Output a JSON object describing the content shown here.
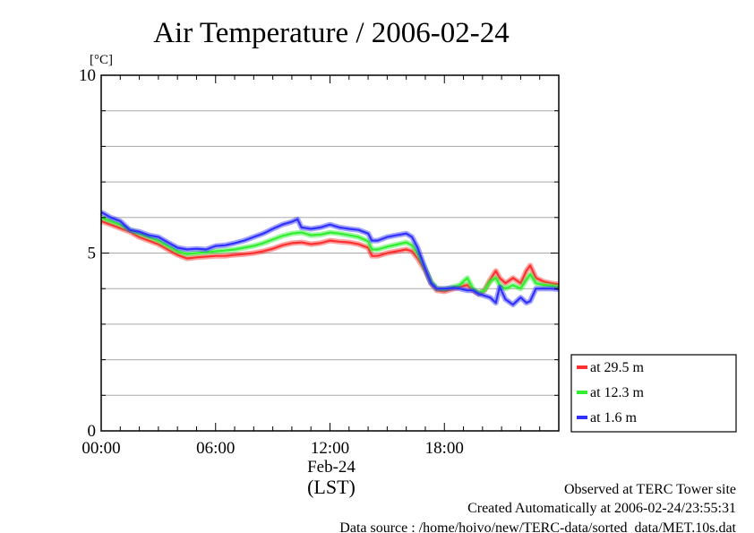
{
  "chart_data": {
    "type": "line",
    "title": "Air Temperature / 2006-02-24",
    "ylabel": "[°C]",
    "ylim": [
      0,
      10
    ],
    "yticks": [
      "0",
      "5",
      "10"
    ],
    "xlim": [
      0,
      24
    ],
    "xticks": [
      {
        "value": 0,
        "label": "00:00"
      },
      {
        "value": 6,
        "label": "06:00"
      },
      {
        "value": 12,
        "label": "12:00"
      },
      {
        "value": 18,
        "label": "18:00"
      }
    ],
    "date_label": "Feb-24",
    "xlabel": "(LST)",
    "grid": true,
    "legend_position": "bottom-right",
    "series": [
      {
        "name": "at 29.5 m",
        "color": "#ff3030",
        "points": [
          [
            0,
            5.9
          ],
          [
            0.5,
            5.8
          ],
          [
            1,
            5.7
          ],
          [
            1.5,
            5.6
          ],
          [
            2,
            5.45
          ],
          [
            2.5,
            5.35
          ],
          [
            3,
            5.25
          ],
          [
            3.5,
            5.1
          ],
          [
            4,
            4.95
          ],
          [
            4.5,
            4.85
          ],
          [
            5,
            4.88
          ],
          [
            5.5,
            4.9
          ],
          [
            6,
            4.92
          ],
          [
            6.5,
            4.92
          ],
          [
            7,
            4.95
          ],
          [
            7.5,
            4.97
          ],
          [
            8,
            5.0
          ],
          [
            8.5,
            5.05
          ],
          [
            9,
            5.12
          ],
          [
            9.5,
            5.22
          ],
          [
            10,
            5.28
          ],
          [
            10.5,
            5.3
          ],
          [
            11,
            5.25
          ],
          [
            11.5,
            5.28
          ],
          [
            12,
            5.35
          ],
          [
            12.5,
            5.32
          ],
          [
            13,
            5.3
          ],
          [
            13.5,
            5.25
          ],
          [
            14,
            5.15
          ],
          [
            14.2,
            4.92
          ],
          [
            14.5,
            4.92
          ],
          [
            15,
            5.0
          ],
          [
            15.5,
            5.05
          ],
          [
            16,
            5.1
          ],
          [
            16.3,
            5.05
          ],
          [
            16.6,
            4.85
          ],
          [
            17,
            4.5
          ],
          [
            17.3,
            4.15
          ],
          [
            17.6,
            3.95
          ],
          [
            18,
            3.92
          ],
          [
            18.5,
            4.0
          ],
          [
            18.8,
            4.05
          ],
          [
            19.2,
            4.1
          ],
          [
            19.5,
            3.95
          ],
          [
            19.8,
            3.85
          ],
          [
            20.1,
            3.95
          ],
          [
            20.4,
            4.25
          ],
          [
            20.7,
            4.5
          ],
          [
            20.9,
            4.3
          ],
          [
            21.2,
            4.15
          ],
          [
            21.6,
            4.3
          ],
          [
            22.0,
            4.15
          ],
          [
            22.3,
            4.5
          ],
          [
            22.5,
            4.65
          ],
          [
            22.8,
            4.3
          ],
          [
            23.2,
            4.2
          ],
          [
            23.6,
            4.15
          ],
          [
            24,
            4.12
          ]
        ]
      },
      {
        "name": "at 12.3 m",
        "color": "#30ee30",
        "points": [
          [
            0,
            6.0
          ],
          [
            0.5,
            5.9
          ],
          [
            1,
            5.8
          ],
          [
            1.5,
            5.65
          ],
          [
            2,
            5.55
          ],
          [
            2.5,
            5.45
          ],
          [
            3,
            5.35
          ],
          [
            3.5,
            5.2
          ],
          [
            4,
            5.05
          ],
          [
            4.5,
            4.97
          ],
          [
            5,
            5.0
          ],
          [
            5.5,
            5.02
          ],
          [
            6,
            5.05
          ],
          [
            6.5,
            5.07
          ],
          [
            7,
            5.1
          ],
          [
            7.5,
            5.15
          ],
          [
            8,
            5.2
          ],
          [
            8.5,
            5.28
          ],
          [
            9,
            5.38
          ],
          [
            9.5,
            5.48
          ],
          [
            10,
            5.55
          ],
          [
            10.5,
            5.58
          ],
          [
            11,
            5.5
          ],
          [
            11.5,
            5.52
          ],
          [
            12,
            5.58
          ],
          [
            12.5,
            5.55
          ],
          [
            13,
            5.5
          ],
          [
            13.5,
            5.45
          ],
          [
            14,
            5.33
          ],
          [
            14.2,
            5.1
          ],
          [
            14.5,
            5.1
          ],
          [
            15,
            5.18
          ],
          [
            15.5,
            5.24
          ],
          [
            16,
            5.3
          ],
          [
            16.3,
            5.22
          ],
          [
            16.6,
            5.0
          ],
          [
            17,
            4.55
          ],
          [
            17.3,
            4.2
          ],
          [
            17.6,
            4.0
          ],
          [
            18,
            3.98
          ],
          [
            18.5,
            4.05
          ],
          [
            18.8,
            4.1
          ],
          [
            19.2,
            4.3
          ],
          [
            19.5,
            4.0
          ],
          [
            19.8,
            3.88
          ],
          [
            20.1,
            3.95
          ],
          [
            20.4,
            4.2
          ],
          [
            20.7,
            4.3
          ],
          [
            20.9,
            4.1
          ],
          [
            21.2,
            4.0
          ],
          [
            21.6,
            4.1
          ],
          [
            22.0,
            4.0
          ],
          [
            22.3,
            4.25
          ],
          [
            22.5,
            4.4
          ],
          [
            22.8,
            4.15
          ],
          [
            23.2,
            4.1
          ],
          [
            23.6,
            4.08
          ],
          [
            24,
            4.05
          ]
        ]
      },
      {
        "name": "at 1.6 m",
        "color": "#3030ff",
        "points": [
          [
            0,
            6.15
          ],
          [
            0.5,
            6.0
          ],
          [
            1,
            5.9
          ],
          [
            1.5,
            5.65
          ],
          [
            2,
            5.6
          ],
          [
            2.5,
            5.5
          ],
          [
            3,
            5.45
          ],
          [
            3.5,
            5.3
          ],
          [
            4,
            5.15
          ],
          [
            4.5,
            5.1
          ],
          [
            5,
            5.12
          ],
          [
            5.5,
            5.1
          ],
          [
            6,
            5.2
          ],
          [
            6.5,
            5.22
          ],
          [
            7,
            5.28
          ],
          [
            7.5,
            5.35
          ],
          [
            8,
            5.45
          ],
          [
            8.5,
            5.55
          ],
          [
            9,
            5.68
          ],
          [
            9.5,
            5.8
          ],
          [
            10,
            5.88
          ],
          [
            10.3,
            5.95
          ],
          [
            10.5,
            5.72
          ],
          [
            11,
            5.68
          ],
          [
            11.5,
            5.72
          ],
          [
            12,
            5.8
          ],
          [
            12.5,
            5.72
          ],
          [
            13,
            5.68
          ],
          [
            13.5,
            5.65
          ],
          [
            14,
            5.55
          ],
          [
            14.2,
            5.35
          ],
          [
            14.5,
            5.35
          ],
          [
            15,
            5.45
          ],
          [
            15.5,
            5.5
          ],
          [
            16,
            5.55
          ],
          [
            16.3,
            5.45
          ],
          [
            16.6,
            5.15
          ],
          [
            17,
            4.55
          ],
          [
            17.3,
            4.15
          ],
          [
            17.6,
            4.0
          ],
          [
            18,
            4.0
          ],
          [
            18.5,
            4.02
          ],
          [
            18.8,
            4.0
          ],
          [
            19.2,
            3.95
          ],
          [
            19.5,
            3.95
          ],
          [
            19.8,
            3.85
          ],
          [
            20.1,
            3.8
          ],
          [
            20.4,
            3.75
          ],
          [
            20.7,
            3.6
          ],
          [
            20.9,
            4.05
          ],
          [
            21.2,
            3.7
          ],
          [
            21.6,
            3.55
          ],
          [
            22.0,
            3.75
          ],
          [
            22.3,
            3.6
          ],
          [
            22.5,
            3.65
          ],
          [
            22.8,
            4.0
          ],
          [
            23.2,
            4.0
          ],
          [
            23.6,
            4.0
          ],
          [
            24,
            3.98
          ]
        ]
      }
    ]
  },
  "footer": {
    "line1": "Observed at TERC Tower site",
    "line2": "Created Automatically at 2006-02-24/23:55:31",
    "line3": "Data source : /home/hoivo/new/TERC-data/sorted_data/MET.10s.dat"
  }
}
